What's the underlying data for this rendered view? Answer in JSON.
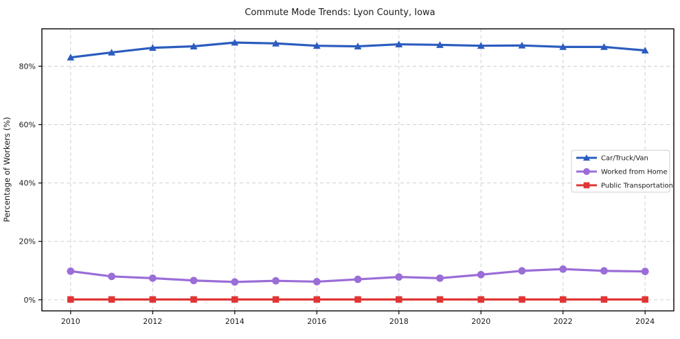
{
  "title": "Commute Mode Trends: Lyon County, Iowa",
  "chart_data": {
    "type": "line",
    "title": "Commute Mode Trends: Lyon County, Iowa",
    "xlabel": "",
    "ylabel": "Percentage of Workers (%)",
    "x": [
      2010,
      2011,
      2012,
      2013,
      2014,
      2015,
      2016,
      2017,
      2018,
      2019,
      2020,
      2021,
      2022,
      2023,
      2024
    ],
    "series": [
      {
        "name": "Car/Truck/Van",
        "marker": "triangle",
        "color": "#2b5cbf",
        "values": [
          83.0,
          84.7,
          86.3,
          86.8,
          88.1,
          87.8,
          87.0,
          86.8,
          87.5,
          87.3,
          87.0,
          87.1,
          86.6,
          86.6,
          85.4
        ]
      },
      {
        "name": "Worked from Home",
        "marker": "circle",
        "color": "#9a6dd7",
        "values": [
          9.8,
          8.0,
          7.4,
          6.6,
          6.1,
          6.5,
          6.2,
          7.0,
          7.8,
          7.4,
          8.6,
          9.9,
          10.5,
          9.9,
          9.7
        ]
      },
      {
        "name": "Public Transportation",
        "marker": "square",
        "color": "#e03535",
        "values": [
          0.1,
          0.1,
          0.1,
          0.1,
          0.1,
          0.1,
          0.1,
          0.1,
          0.1,
          0.1,
          0.1,
          0.1,
          0.1,
          0.1,
          0.1
        ]
      }
    ],
    "xticks": [
      2010,
      2012,
      2014,
      2016,
      2018,
      2020,
      2022,
      2024
    ],
    "yticks": [
      0,
      20,
      40,
      60,
      80
    ],
    "ytick_suffix": "%",
    "xlim": [
      2009.3,
      2024.7
    ],
    "ylim": [
      -3.8,
      92.8
    ],
    "grid": true,
    "grid_style": "dashed",
    "grid_color": "#cfcfcf",
    "frame_color": "#000000",
    "background_color": "#ffffff",
    "legend_position": "center-right"
  }
}
